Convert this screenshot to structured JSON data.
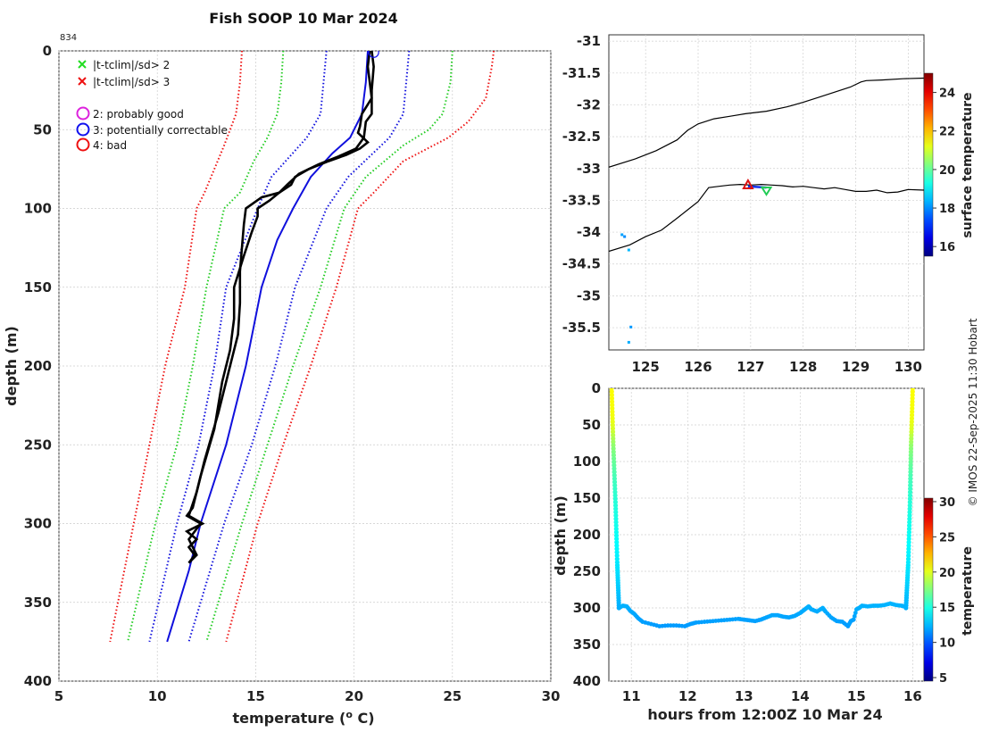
{
  "chart_data": [
    {
      "type": "line",
      "title": "Fish SOOP 10 Mar 2024",
      "corner_label": "834",
      "xlabel": "temperature (",
      "xlabel_sup": "o",
      "xlabel_unit": " C)",
      "ylabel": "depth (m)",
      "xlim": [
        5,
        30
      ],
      "ylim": [
        400,
        0
      ],
      "xticks": [
        "5",
        "10",
        "15",
        "20",
        "25",
        "30"
      ],
      "yticks": [
        "0",
        "50",
        "100",
        "150",
        "200",
        "250",
        "300",
        "350",
        "400"
      ],
      "grid": true,
      "legend": [
        {
          "marker": "x",
          "color": "#22dd22",
          "label": "|t-tclim|/sd> 2"
        },
        {
          "marker": "x",
          "color": "#ee1111",
          "label": "|t-tclim|/sd> 3"
        },
        {
          "marker": "o",
          "color": "#dd22dd",
          "label": "2: probably good"
        },
        {
          "marker": "o",
          "color": "#1111ee",
          "label": "3: potentially correctable"
        },
        {
          "marker": "o",
          "color": "#ee1111",
          "label": "4: bad"
        }
      ],
      "series": [
        {
          "name": "climatology mean",
          "style": "solid",
          "color": "#1010dd",
          "depths": [
            0,
            20,
            40,
            55,
            65,
            80,
            100,
            120,
            150,
            175,
            200,
            250,
            300,
            330,
            375
          ],
          "values": [
            20.7,
            20.6,
            20.4,
            19.8,
            18.9,
            17.8,
            16.9,
            16.1,
            15.3,
            14.9,
            14.5,
            13.5,
            12.2,
            11.6,
            10.5
          ]
        },
        {
          "name": "climatology +1sd",
          "style": "dotted",
          "color": "#1010dd",
          "depths": [
            0,
            40,
            55,
            80,
            100,
            150,
            200,
            250,
            300,
            375
          ],
          "values": [
            22.8,
            22.5,
            21.8,
            19.7,
            18.6,
            17.0,
            16.0,
            14.8,
            13.4,
            11.6
          ]
        },
        {
          "name": "climatology -1sd",
          "style": "dotted",
          "color": "#1010dd",
          "depths": [
            0,
            40,
            55,
            80,
            100,
            150,
            200,
            250,
            300,
            375
          ],
          "values": [
            18.6,
            18.3,
            17.6,
            15.8,
            15.1,
            13.5,
            12.9,
            12.1,
            11.0,
            9.6
          ]
        },
        {
          "name": "climatology +2sd",
          "style": "dotted",
          "color": "#22cc22",
          "depths": [
            0,
            20,
            40,
            50,
            60,
            80,
            100,
            150,
            200,
            250,
            300,
            375
          ],
          "values": [
            25.0,
            24.9,
            24.5,
            23.8,
            22.5,
            20.6,
            19.5,
            18.3,
            16.9,
            15.6,
            14.3,
            12.5
          ]
        },
        {
          "name": "climatology -2sd",
          "style": "dotted",
          "color": "#22cc22",
          "depths": [
            0,
            20,
            40,
            55,
            70,
            90,
            100,
            150,
            200,
            250,
            300,
            375
          ],
          "values": [
            16.4,
            16.3,
            16.1,
            15.6,
            14.9,
            14.2,
            13.4,
            12.5,
            11.8,
            11.0,
            9.9,
            8.5
          ]
        },
        {
          "name": "climatology +3sd",
          "style": "dotted",
          "color": "#ee1111",
          "depths": [
            0,
            10,
            30,
            45,
            55,
            70,
            90,
            100,
            150,
            200,
            250,
            300,
            375
          ],
          "values": [
            27.1,
            27.0,
            26.7,
            25.8,
            24.8,
            22.5,
            21.0,
            20.2,
            19.1,
            17.8,
            16.4,
            15.1,
            13.5
          ]
        },
        {
          "name": "climatology -3sd",
          "style": "dotted",
          "color": "#ee1111",
          "depths": [
            0,
            20,
            40,
            60,
            75,
            90,
            100,
            150,
            200,
            250,
            300,
            375
          ],
          "values": [
            14.3,
            14.2,
            14.0,
            13.4,
            12.9,
            12.4,
            12.0,
            11.4,
            10.4,
            9.6,
            8.8,
            7.6
          ]
        },
        {
          "name": "profile 1",
          "style": "solid",
          "color": "#000000",
          "depths": [
            0,
            10,
            25,
            40,
            45,
            55,
            62,
            67,
            72,
            78,
            85,
            90,
            93,
            100,
            110,
            125,
            140,
            160,
            180,
            200,
            230,
            260,
            280,
            295,
            300,
            305,
            310,
            315,
            320,
            325
          ],
          "values": [
            20.9,
            21.0,
            20.9,
            20.9,
            20.6,
            20.5,
            20.1,
            19.2,
            18.2,
            17.2,
            16.6,
            16.2,
            15.3,
            14.5,
            14.4,
            14.3,
            14.2,
            14.2,
            14.1,
            13.7,
            13.1,
            12.4,
            12.0,
            11.6,
            12.3,
            11.5,
            12.0,
            11.6,
            11.9,
            11.6
          ]
        },
        {
          "name": "profile 2",
          "style": "solid",
          "color": "#000000",
          "depths": [
            0,
            10,
            20,
            30,
            40,
            48,
            52,
            58,
            62,
            66,
            70,
            75,
            80,
            85,
            90,
            95,
            100,
            105,
            115,
            130,
            150,
            170,
            190,
            210,
            240,
            270,
            290,
            295,
            300,
            310,
            320,
            325
          ],
          "values": [
            20.8,
            20.7,
            20.8,
            20.9,
            20.4,
            20.3,
            20.2,
            20.7,
            20.3,
            19.6,
            18.7,
            17.7,
            17.0,
            16.8,
            16.2,
            15.7,
            15.1,
            15.1,
            14.8,
            14.4,
            13.9,
            13.9,
            13.7,
            13.3,
            12.9,
            12.2,
            11.8,
            11.5,
            12.2,
            11.6,
            12.0,
            11.6
          ]
        }
      ],
      "flag_marker": {
        "type": "circle",
        "color": "#1111ee",
        "temperature": 21.0,
        "depth": 1
      }
    },
    {
      "type": "map",
      "xlim": [
        124.3,
        130.3
      ],
      "ylim": [
        -35.85,
        -30.9
      ],
      "xticks": [
        "125",
        "126",
        "127",
        "128",
        "129",
        "130"
      ],
      "yticks": [
        "-31",
        "-31.5",
        "-32",
        "-32.5",
        "-33",
        "-33.5",
        "-34",
        "-34.5",
        "-35",
        "-35.5"
      ],
      "coast_north": {
        "lon": [
          124.3,
          124.8,
          125.2,
          125.6,
          125.8,
          126.0,
          126.3,
          126.6,
          126.9,
          127.3,
          127.7,
          128.0,
          128.3,
          128.6,
          128.9,
          129.1,
          129.2,
          129.5,
          129.9,
          130.3
        ],
        "lat": [
          -32.98,
          -32.85,
          -32.72,
          -32.55,
          -32.4,
          -32.3,
          -32.22,
          -32.18,
          -32.14,
          -32.1,
          -32.03,
          -31.96,
          -31.88,
          -31.8,
          -31.72,
          -31.64,
          -31.62,
          -31.61,
          -31.59,
          -31.58
        ]
      },
      "coast_south": {
        "lon": [
          124.3,
          124.7,
          125.0,
          125.3,
          125.6,
          125.8,
          126.0,
          126.2,
          126.4,
          126.6,
          126.8,
          127.0,
          127.2,
          127.4,
          127.6,
          127.8,
          128.0,
          128.2,
          128.4,
          128.6,
          128.8,
          129.0,
          129.2,
          129.4,
          129.6,
          129.8,
          130.0,
          130.3
        ],
        "lat": [
          -34.3,
          -34.2,
          -34.07,
          -33.97,
          -33.78,
          -33.65,
          -33.52,
          -33.3,
          -33.28,
          -33.26,
          -33.25,
          -33.26,
          -33.25,
          -33.26,
          -33.27,
          -33.29,
          -33.28,
          -33.3,
          -33.32,
          -33.3,
          -33.33,
          -33.36,
          -33.36,
          -33.34,
          -33.38,
          -33.37,
          -33.33,
          -33.34
        ]
      },
      "track": [
        {
          "lon": 126.95,
          "lat": -33.28
        },
        {
          "lon": 127.3,
          "lat": -33.3
        }
      ],
      "markers": [
        {
          "kind": "triangle-up",
          "color": "#dd1111",
          "lon": 126.95,
          "lat": -33.27
        },
        {
          "kind": "triangle-down",
          "color": "#22cc55",
          "lon": 127.3,
          "lat": -33.34
        }
      ],
      "dots": [
        {
          "lon": 124.55,
          "lat": -34.04,
          "temp": 18.2
        },
        {
          "lon": 124.6,
          "lat": -34.07,
          "temp": 18.0
        },
        {
          "lon": 124.68,
          "lat": -34.28,
          "temp": 18.4
        },
        {
          "lon": 124.72,
          "lat": -35.49,
          "temp": 18.1
        },
        {
          "lon": 124.68,
          "lat": -35.73,
          "temp": 18.3
        }
      ],
      "colorbar": {
        "label": "surface temperature",
        "min": 15.5,
        "max": 25,
        "ticks": [
          "16",
          "18",
          "20",
          "22",
          "24"
        ]
      }
    },
    {
      "type": "scatter",
      "xlabel": "hours from 12:00Z 10 Mar 24",
      "ylabel": "depth (m)",
      "xlim": [
        10.6,
        16.2
      ],
      "ylim": [
        400,
        0
      ],
      "xticks": [
        "11",
        "12",
        "13",
        "14",
        "15",
        "16"
      ],
      "yticks": [
        "0",
        "50",
        "100",
        "150",
        "200",
        "250",
        "300",
        "350",
        "400"
      ],
      "descent": {
        "x": [
          10.65,
          10.68,
          10.72,
          10.75,
          10.78
        ],
        "depth": [
          0,
          80,
          160,
          240,
          300
        ]
      },
      "ascent": {
        "x": [
          15.88,
          15.92,
          15.95,
          15.97,
          16.0
        ],
        "depth": [
          300,
          240,
          160,
          80,
          0
        ]
      },
      "path": {
        "x": [
          10.78,
          10.85,
          10.92,
          10.98,
          11.05,
          11.12,
          11.2,
          11.35,
          11.5,
          11.65,
          11.8,
          11.95,
          12.05,
          12.15,
          12.3,
          12.45,
          12.6,
          12.75,
          12.9,
          13.0,
          13.1,
          13.2,
          13.3,
          13.4,
          13.5,
          13.6,
          13.7,
          13.8,
          13.9,
          14.0,
          14.05,
          14.1,
          14.15,
          14.2,
          14.3,
          14.4,
          14.45,
          14.55,
          14.65,
          14.75,
          14.85,
          14.9,
          14.95,
          15.0,
          15.05,
          15.1,
          15.2,
          15.3,
          15.4,
          15.5,
          15.6,
          15.7,
          15.8,
          15.85
        ],
        "depth": [
          300,
          297,
          298,
          304,
          308,
          314,
          319,
          322,
          325,
          324,
          324,
          325,
          322,
          320,
          319,
          318,
          317,
          316,
          315,
          316,
          317,
          318,
          316,
          313,
          310,
          310,
          312,
          313,
          311,
          307,
          304,
          301,
          298,
          302,
          305,
          300,
          305,
          313,
          318,
          319,
          325,
          318,
          316,
          302,
          300,
          297,
          298,
          297,
          297,
          296,
          294,
          296,
          297,
          298
        ]
      },
      "colorbar": {
        "label": "temperature",
        "min": 4.5,
        "max": 30.5,
        "ticks": [
          "5",
          "10",
          "15",
          "20",
          "25",
          "30"
        ]
      }
    }
  ],
  "credit": "© IMOS 22-Sep-2025 11:30 Hobart"
}
